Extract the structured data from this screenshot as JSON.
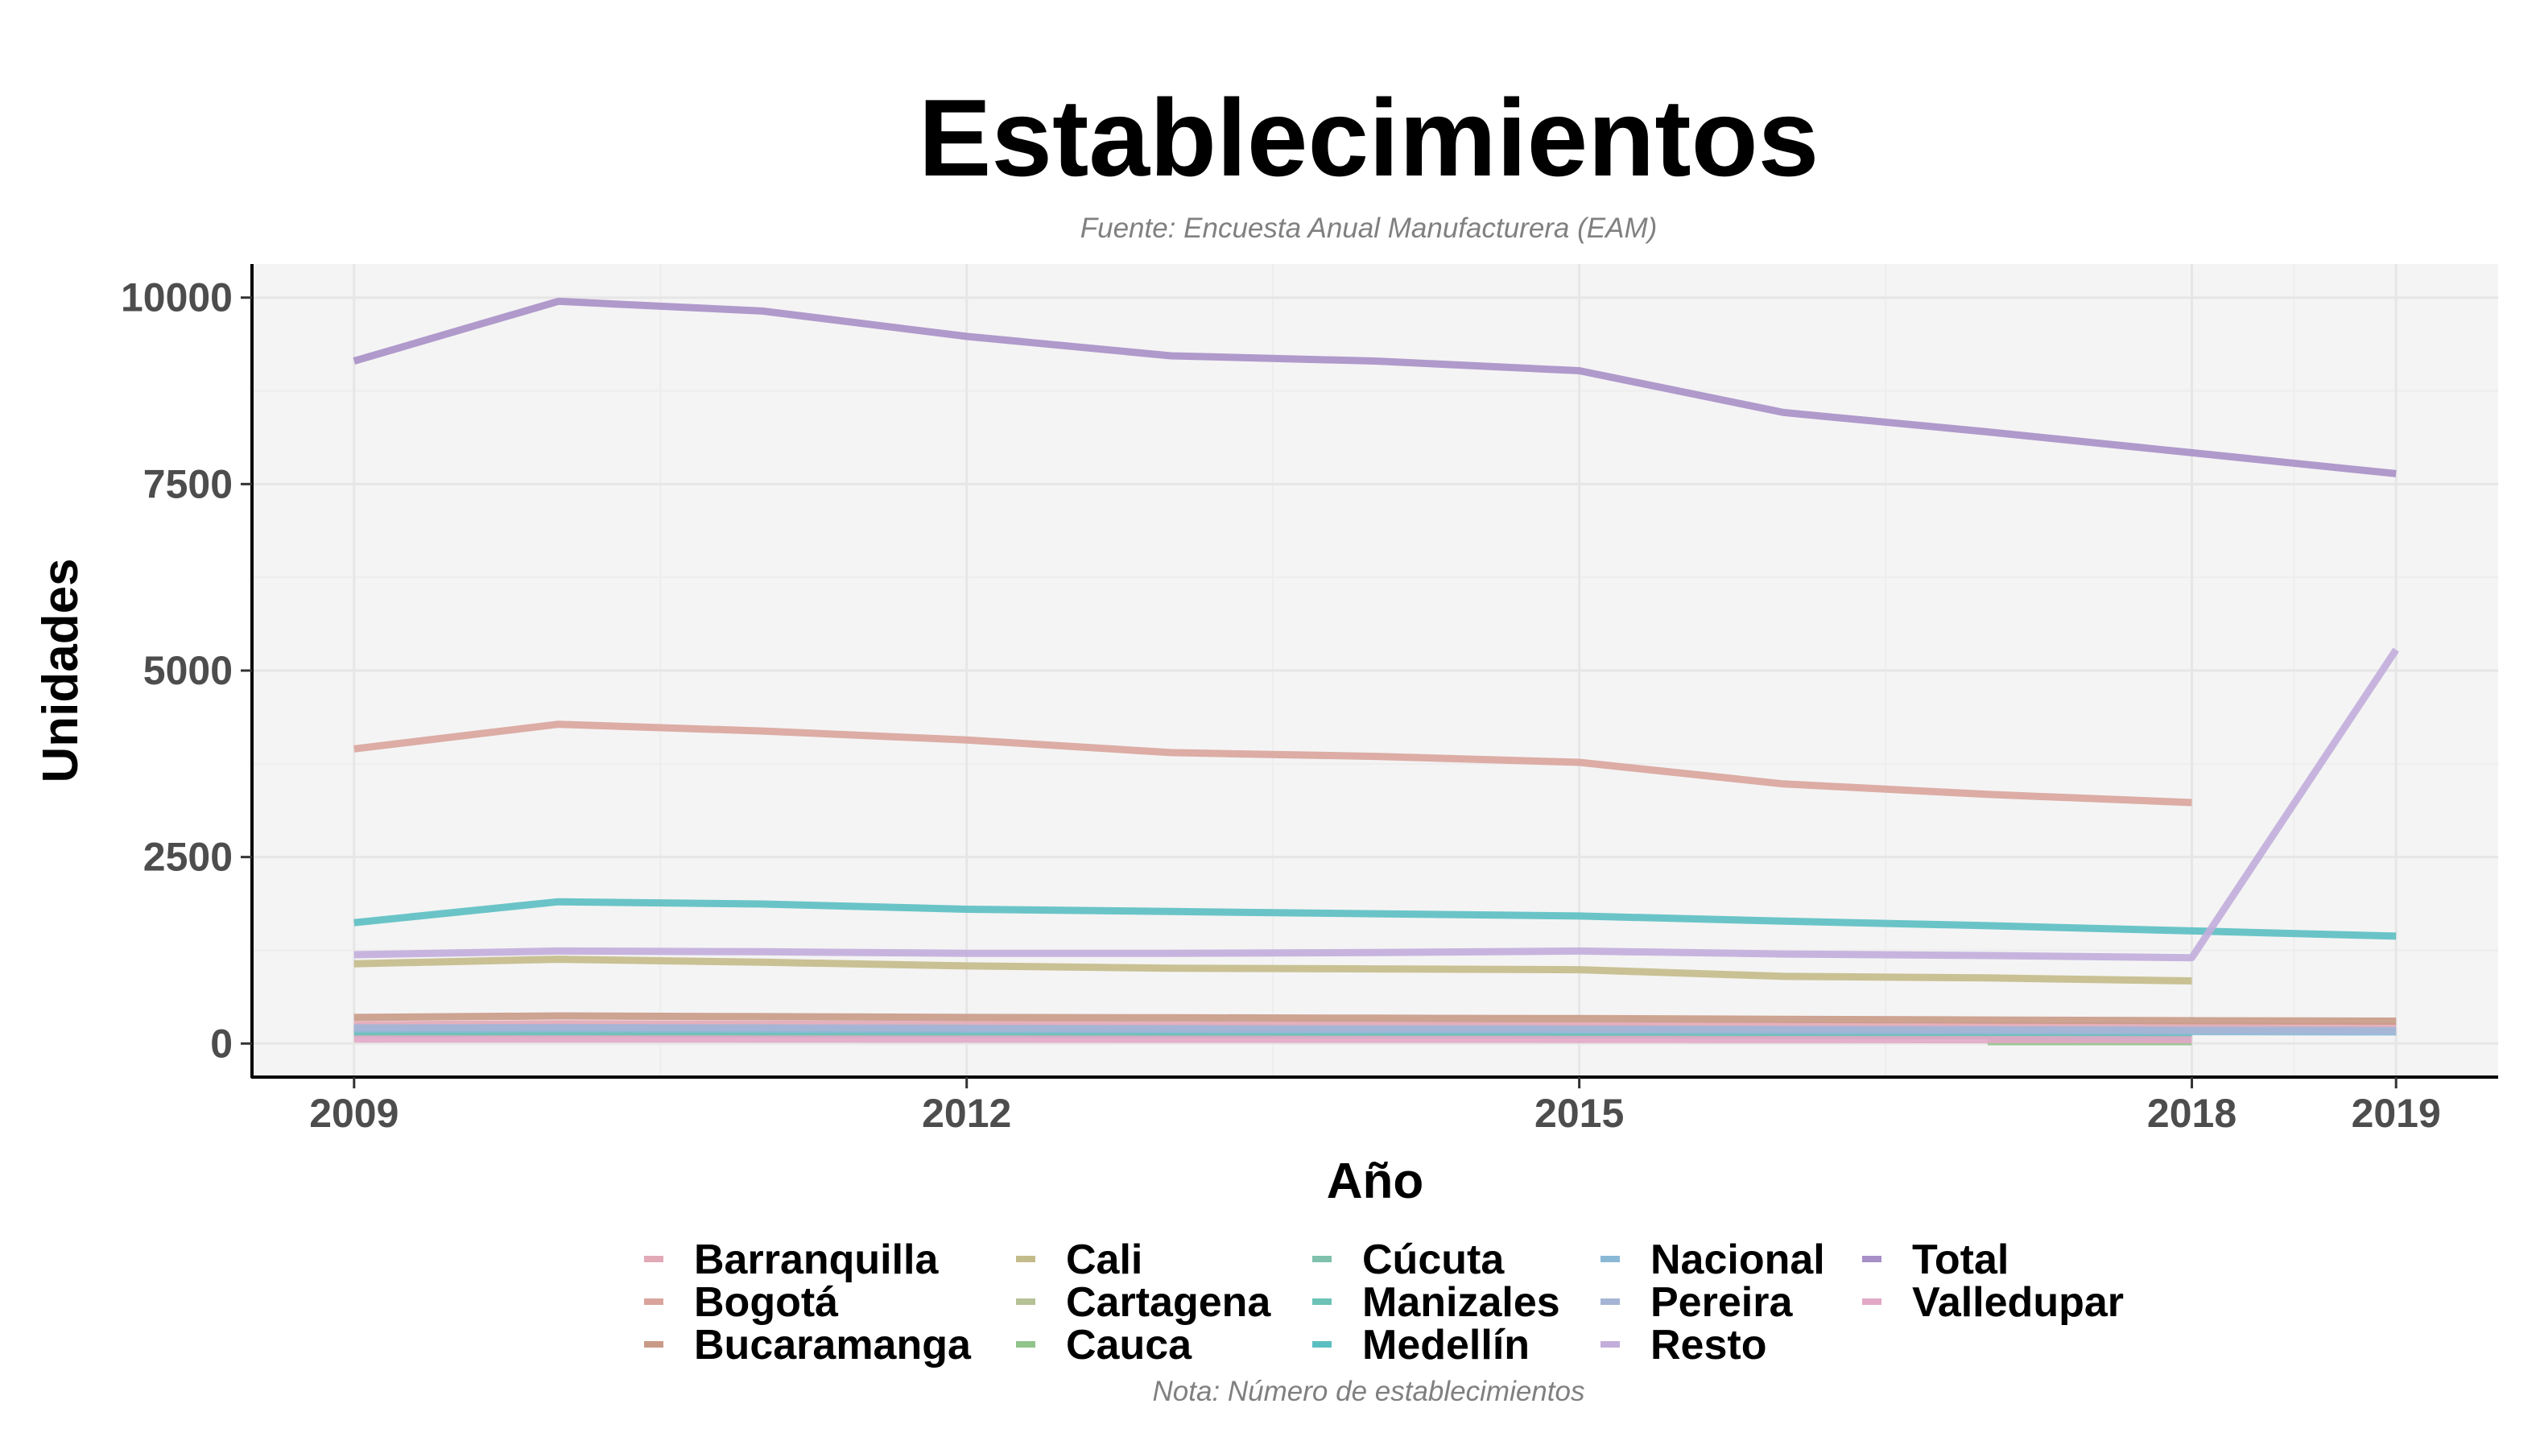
{
  "chart_data": {
    "type": "line",
    "title": "Establecimientos",
    "subtitle": "Fuente: Encuesta Anual Manufacturera (EAM)",
    "caption": "Nota: Número de establecimientos",
    "xlabel": "Año",
    "ylabel": "Unidades",
    "xlim": [
      2008.5,
      2019.5
    ],
    "ylim": [
      -450,
      10450
    ],
    "xticks": [
      2009,
      2012,
      2015,
      2018,
      2019
    ],
    "yticks": [
      0,
      2500,
      5000,
      7500,
      10000
    ],
    "grid": true,
    "legend_position": "bottom",
    "series": [
      {
        "name": "Barranquilla",
        "color": "#e2a9b6",
        "x": [
          2009,
          2010,
          2011,
          2012,
          2013,
          2014,
          2015,
          2016,
          2017,
          2018,
          2019
        ],
        "y": [
          250,
          265,
          260,
          255,
          250,
          248,
          245,
          240,
          235,
          230,
          228
        ]
      },
      {
        "name": "Bogotá",
        "color": "#d9a49c",
        "x": [
          2009,
          2010,
          2011,
          2012,
          2013,
          2014,
          2015,
          2016,
          2017,
          2018
        ],
        "y": [
          3950,
          4280,
          4190,
          4070,
          3900,
          3850,
          3770,
          3480,
          3340,
          3230
        ]
      },
      {
        "name": "Bucaramanga",
        "color": "#c99a87",
        "x": [
          2009,
          2010,
          2011,
          2012,
          2013,
          2014,
          2015,
          2016,
          2017,
          2018,
          2019
        ],
        "y": [
          350,
          370,
          360,
          350,
          345,
          340,
          335,
          325,
          315,
          305,
          300
        ]
      },
      {
        "name": "Cali",
        "color": "#c4bb8a",
        "x": [
          2009,
          2010,
          2011,
          2012,
          2013,
          2014,
          2015,
          2016,
          2017,
          2018
        ],
        "y": [
          1070,
          1130,
          1090,
          1040,
          1010,
          1000,
          990,
          900,
          880,
          840
        ]
      },
      {
        "name": "Cartagena",
        "color": "#b6c196",
        "x": [
          2009,
          2010,
          2011,
          2012,
          2013,
          2014,
          2015,
          2016,
          2017,
          2018
        ],
        "y": [
          175,
          180,
          175,
          170,
          168,
          165,
          160,
          155,
          150,
          145
        ]
      },
      {
        "name": "Cauca",
        "color": "#90c48a",
        "x": [
          2017,
          2018
        ],
        "y": [
          25,
          25
        ]
      },
      {
        "name": "Cúcuta",
        "color": "#7fc1ac",
        "x": [
          2009,
          2010,
          2011,
          2012,
          2013,
          2014,
          2015,
          2016,
          2017,
          2018
        ],
        "y": [
          140,
          145,
          140,
          135,
          130,
          128,
          125,
          120,
          115,
          110
        ]
      },
      {
        "name": "Manizales",
        "color": "#6cc2b6",
        "x": [
          2009,
          2010,
          2011,
          2012,
          2013,
          2014,
          2015,
          2016,
          2017,
          2018
        ],
        "y": [
          130,
          132,
          128,
          125,
          120,
          118,
          115,
          110,
          105,
          100
        ]
      },
      {
        "name": "Medellín",
        "color": "#5bbfc2",
        "x": [
          2009,
          2010,
          2011,
          2012,
          2013,
          2014,
          2015,
          2016,
          2017,
          2018,
          2019
        ],
        "y": [
          1620,
          1900,
          1870,
          1800,
          1770,
          1740,
          1710,
          1640,
          1580,
          1510,
          1440
        ]
      },
      {
        "name": "Nacional",
        "color": "#8ab9d6",
        "x": [
          2009,
          2010,
          2011,
          2012,
          2013,
          2014,
          2015,
          2016,
          2017,
          2018,
          2019
        ],
        "y": [
          190,
          195,
          190,
          185,
          182,
          180,
          178,
          172,
          168,
          160,
          155
        ]
      },
      {
        "name": "Pereira",
        "color": "#a6b5d6",
        "x": [
          2009,
          2010,
          2011,
          2012,
          2013,
          2014,
          2015,
          2016,
          2017,
          2018,
          2019
        ],
        "y": [
          210,
          215,
          210,
          205,
          200,
          198,
          195,
          190,
          185,
          180,
          175
        ]
      },
      {
        "name": "Resto",
        "color": "#c2addb",
        "x": [
          2009,
          2010,
          2011,
          2012,
          2013,
          2014,
          2015,
          2016,
          2017,
          2018,
          2019
        ],
        "y": [
          1190,
          1240,
          1230,
          1210,
          1210,
          1220,
          1240,
          1200,
          1180,
          1150,
          5280
        ]
      },
      {
        "name": "Total",
        "color": "#a88fc6",
        "x": [
          2009,
          2010,
          2011,
          2012,
          2013,
          2014,
          2015,
          2016,
          2017,
          2018,
          2019
        ],
        "y": [
          9150,
          9950,
          9820,
          9480,
          9220,
          9150,
          9020,
          8460,
          8200,
          7920,
          7640
        ]
      },
      {
        "name": "Valledupar",
        "color": "#e2a9c6",
        "x": [
          2009,
          2010,
          2011,
          2012,
          2013,
          2014,
          2015,
          2016,
          2017,
          2018
        ],
        "y": [
          60,
          62,
          60,
          58,
          57,
          56,
          55,
          53,
          52,
          50
        ]
      }
    ]
  }
}
